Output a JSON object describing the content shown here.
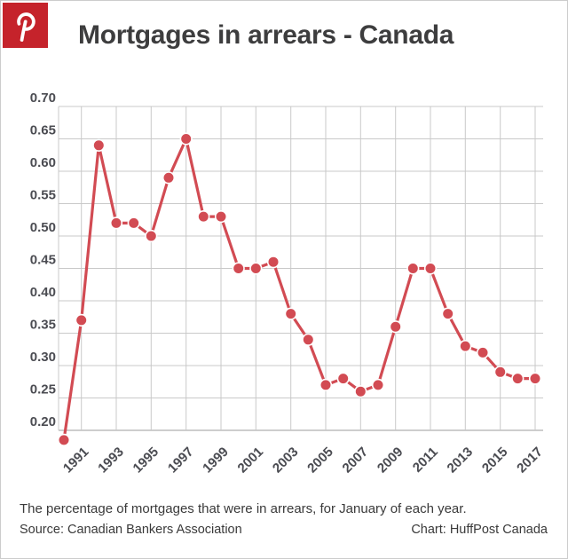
{
  "page": {
    "title": "Mortgages in arrears - Canada",
    "badge": {
      "network": "Pinterest",
      "color": "#c5232b"
    },
    "caption": "The percentage of mortgages that were in arrears, for January of each year.",
    "source": "Source: Canadian Bankers Association",
    "credit": "Chart: HuffPost Canada"
  },
  "chart_data": {
    "type": "line",
    "title": "Mortgages in arrears - Canada",
    "x": [
      1990,
      1991,
      1992,
      1993,
      1994,
      1995,
      1996,
      1997,
      1998,
      1999,
      2000,
      2001,
      2002,
      2003,
      2004,
      2005,
      2006,
      2007,
      2008,
      2009,
      2010,
      2011,
      2012,
      2013,
      2014,
      2015,
      2016,
      2017
    ],
    "values": [
      0.185,
      0.37,
      0.64,
      0.52,
      0.52,
      0.5,
      0.59,
      0.65,
      0.53,
      0.53,
      0.45,
      0.45,
      0.46,
      0.38,
      0.34,
      0.27,
      0.28,
      0.26,
      0.27,
      0.36,
      0.45,
      0.45,
      0.38,
      0.33,
      0.32,
      0.29,
      0.28,
      0.28
    ],
    "x_tick_years": [
      1991,
      1993,
      1995,
      1997,
      1999,
      2001,
      2003,
      2005,
      2007,
      2009,
      2011,
      2013,
      2015,
      2017
    ],
    "y_ticks": [
      0.2,
      0.25,
      0.3,
      0.35,
      0.4,
      0.45,
      0.5,
      0.55,
      0.6,
      0.65,
      0.7
    ],
    "ylim": [
      0.175,
      0.7
    ],
    "xlim": [
      1990,
      2017
    ],
    "grid": true,
    "legend": false,
    "line_color": "#d24b53",
    "point_color": "#d24b53",
    "point_outline_color": "#ffffff",
    "grid_color": "#c9c9c9",
    "axis_line_color": "#9b9b9b",
    "tick_label_color": "#4b4c52"
  }
}
